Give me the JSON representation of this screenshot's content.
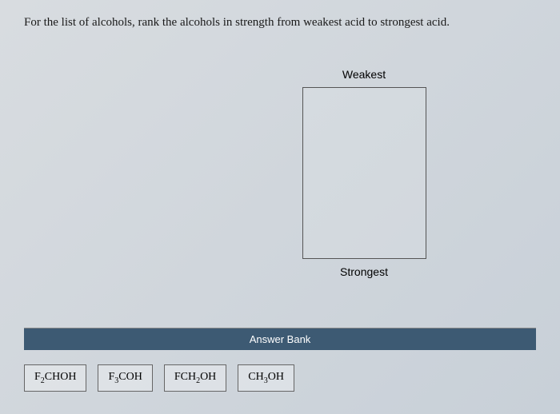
{
  "question": "For the list of alcohols, rank the alcohols in strength from weakest acid to strongest acid.",
  "ranking": {
    "topLabel": "Weakest",
    "bottomLabel": "Strongest"
  },
  "answerBank": {
    "header": "Answer Bank",
    "items": [
      {
        "prefix": "F",
        "sub1": "2",
        "mid": "CHOH",
        "sub2": "",
        "suffix": ""
      },
      {
        "prefix": "F",
        "sub1": "3",
        "mid": "COH",
        "sub2": "",
        "suffix": ""
      },
      {
        "prefix": "FCH",
        "sub1": "2",
        "mid": "OH",
        "sub2": "",
        "suffix": ""
      },
      {
        "prefix": "CH",
        "sub1": "3",
        "mid": "OH",
        "sub2": "",
        "suffix": ""
      }
    ]
  },
  "colors": {
    "headerBg": "#3d5a73",
    "pageBg": "#d8dce0",
    "border": "#666"
  }
}
